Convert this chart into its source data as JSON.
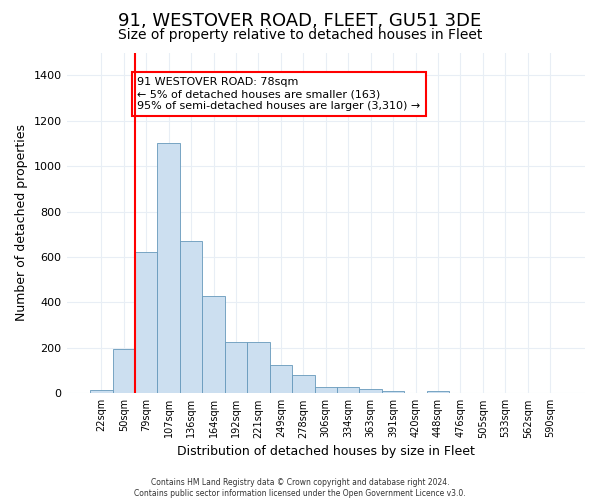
{
  "title": "91, WESTOVER ROAD, FLEET, GU51 3DE",
  "subtitle": "Size of property relative to detached houses in Fleet",
  "xlabel": "Distribution of detached houses by size in Fleet",
  "ylabel": "Number of detached properties",
  "bar_color": "#ccdff0",
  "bar_edge_color": "#6699bb",
  "annotation_title": "91 WESTOVER ROAD: 78sqm",
  "annotation_line1": "← 5% of detached houses are smaller (163)",
  "annotation_line2": "95% of semi-detached houses are larger (3,310) →",
  "footer": "Contains HM Land Registry data © Crown copyright and database right 2024.\nContains public sector information licensed under the Open Government Licence v3.0.",
  "categories": [
    "22sqm",
    "50sqm",
    "79sqm",
    "107sqm",
    "136sqm",
    "164sqm",
    "192sqm",
    "221sqm",
    "249sqm",
    "278sqm",
    "306sqm",
    "334sqm",
    "363sqm",
    "391sqm",
    "420sqm",
    "448sqm",
    "476sqm",
    "505sqm",
    "533sqm",
    "562sqm",
    "590sqm"
  ],
  "values": [
    15,
    195,
    620,
    1100,
    670,
    430,
    225,
    225,
    125,
    80,
    30,
    30,
    20,
    10,
    0,
    10,
    0,
    0,
    0,
    0,
    0
  ],
  "ylim": [
    0,
    1500
  ],
  "yticks": [
    0,
    200,
    400,
    600,
    800,
    1000,
    1200,
    1400
  ],
  "background_color": "#ffffff",
  "grid_color": "#e8eef5",
  "title_fontsize": 13,
  "subtitle_fontsize": 10,
  "red_line_bin_edge": 2
}
